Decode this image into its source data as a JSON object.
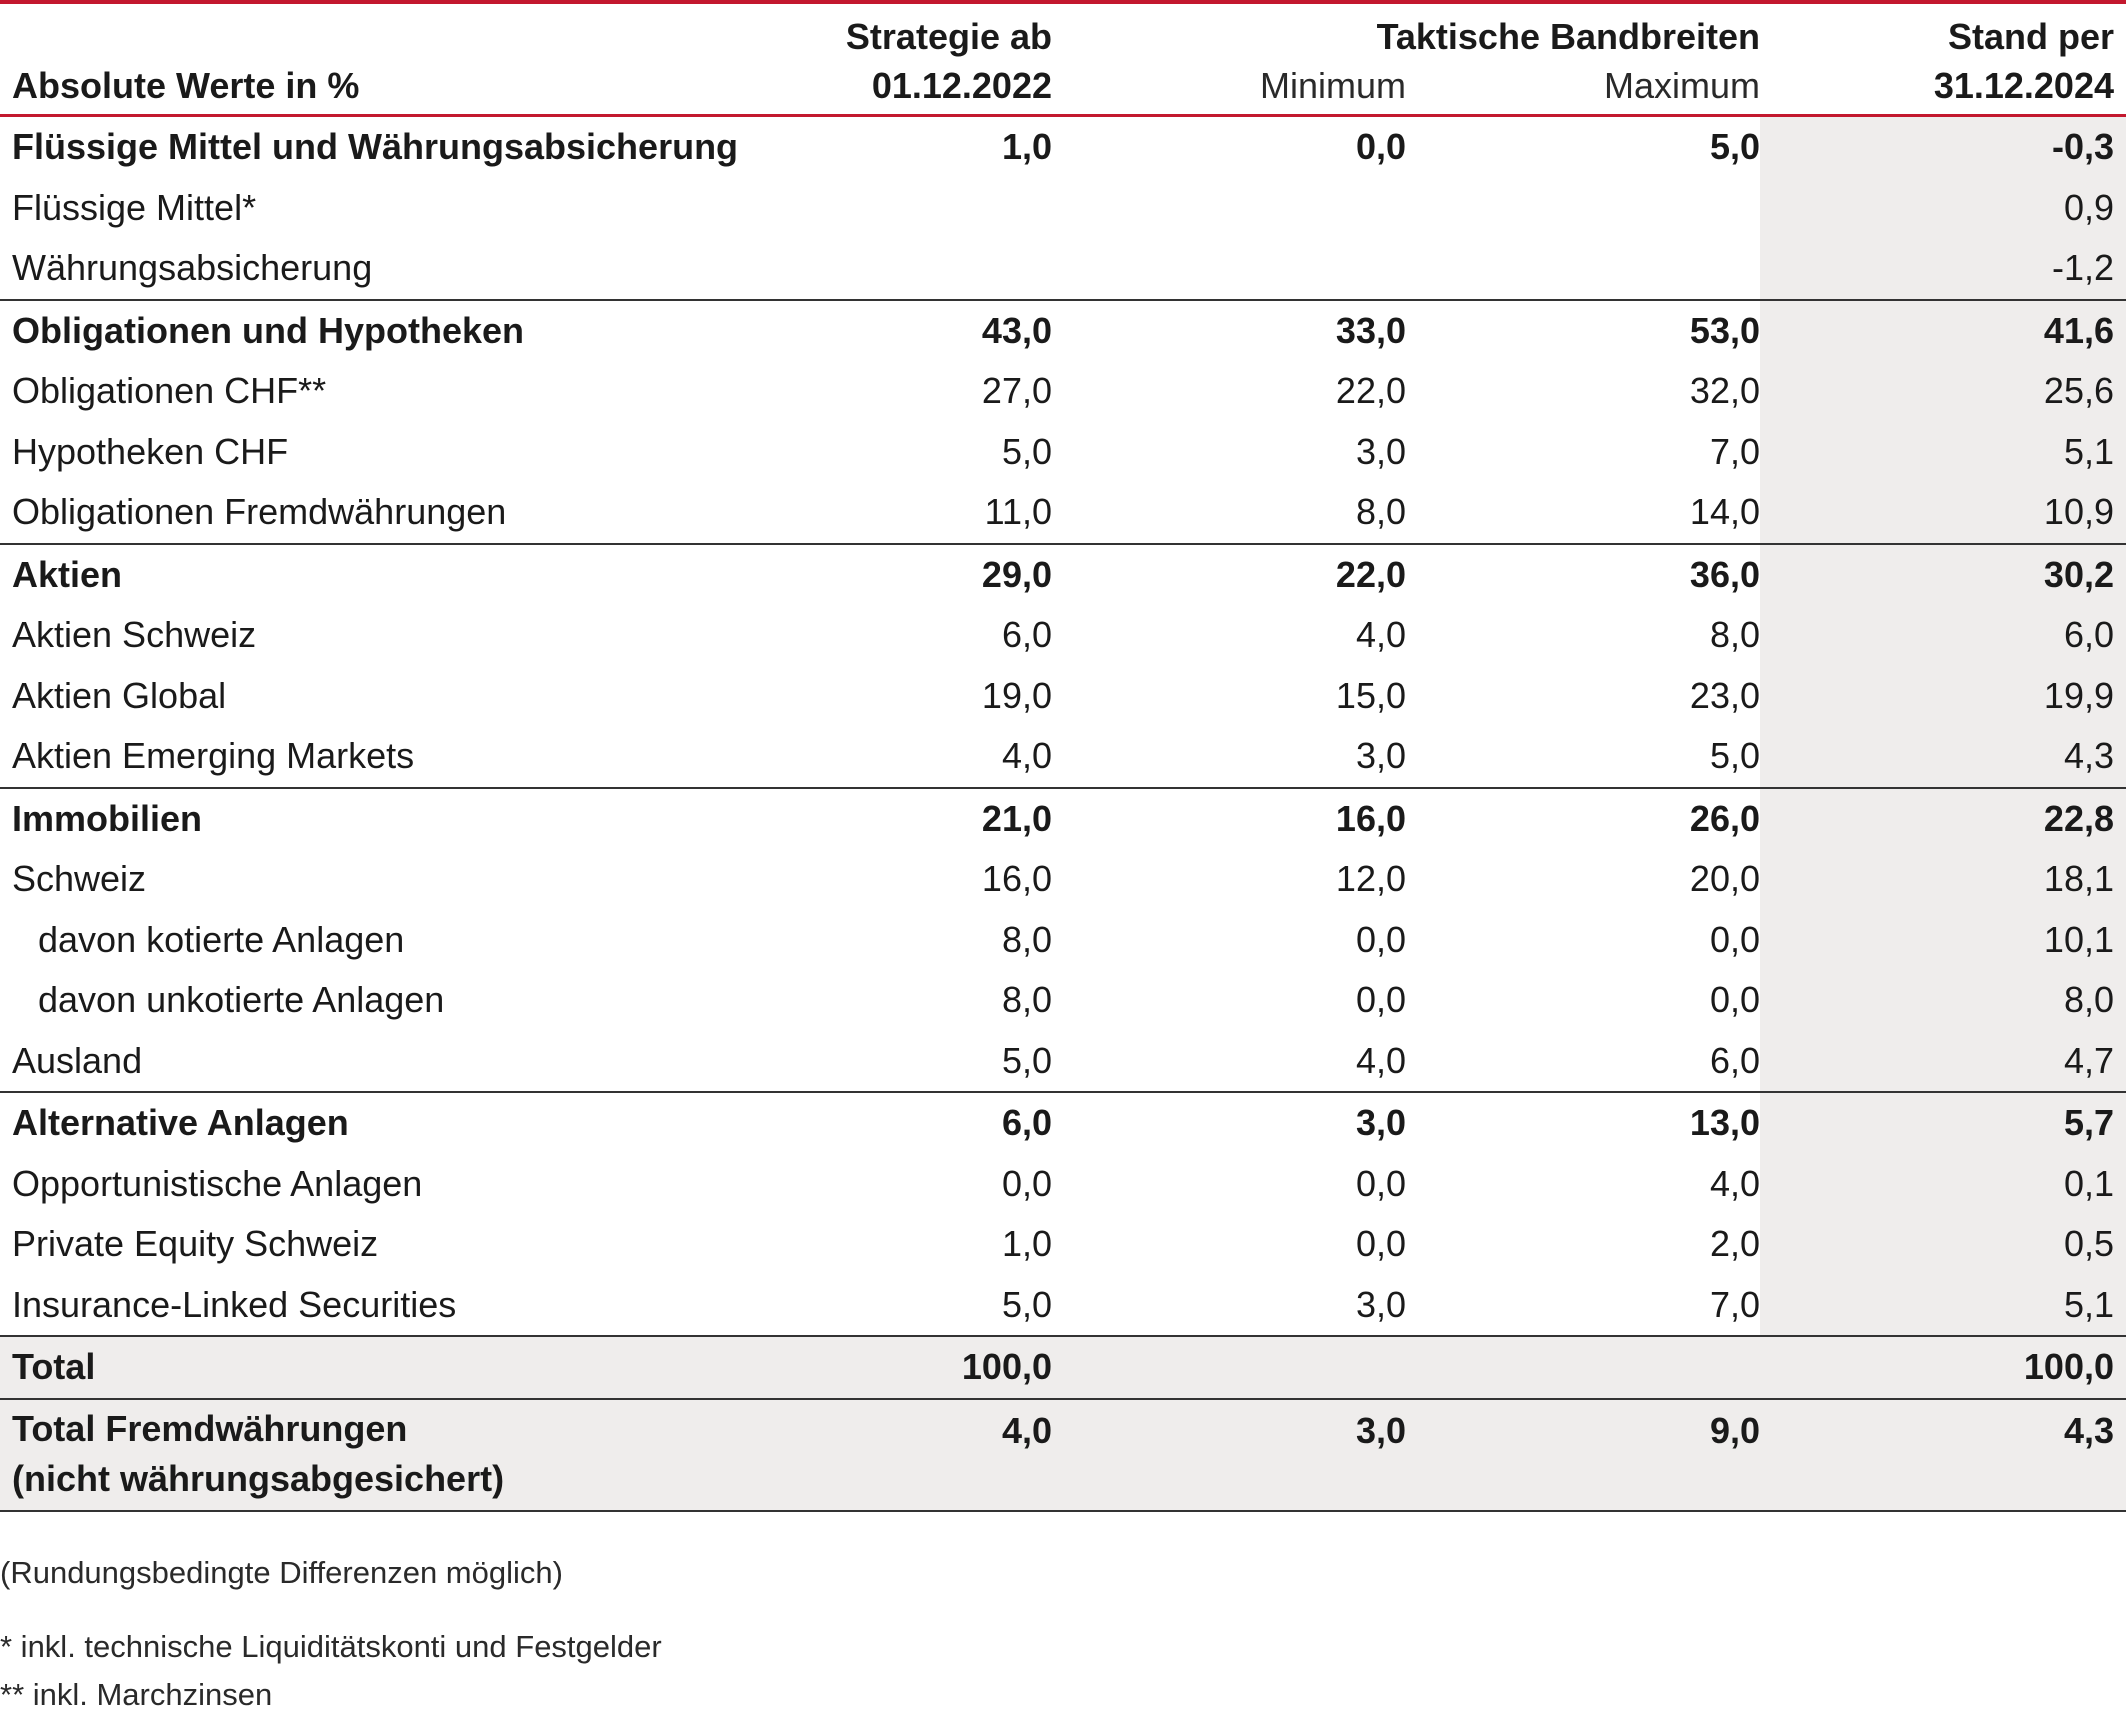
{
  "header": {
    "label_col": "Absolute Werte in %",
    "strategy_line1": "Strategie ab",
    "strategy_line2": "01.12.2022",
    "tactical_title": "Taktische Bandbreiten",
    "minimum": "Minimum",
    "maximum": "Maximum",
    "stand_line1": "Stand per",
    "stand_line2": "31.12.2024"
  },
  "rows": [
    {
      "label": "Flüssige Mittel und Währungsabsicherung",
      "strategy": "1,0",
      "min": "0,0",
      "max": "5,0",
      "stand": "-0,3"
    },
    {
      "label": "Flüssige Mittel*",
      "strategy": "",
      "min": "",
      "max": "",
      "stand": "0,9"
    },
    {
      "label": "Währungsabsicherung",
      "strategy": "",
      "min": "",
      "max": "",
      "stand": "-1,2"
    },
    {
      "label": "Obligationen und Hypotheken",
      "strategy": "43,0",
      "min": "33,0",
      "max": "53,0",
      "stand": "41,6"
    },
    {
      "label": "Obligationen CHF**",
      "strategy": "27,0",
      "min": "22,0",
      "max": "32,0",
      "stand": "25,6"
    },
    {
      "label": "Hypotheken CHF",
      "strategy": "5,0",
      "min": "3,0",
      "max": "7,0",
      "stand": "5,1"
    },
    {
      "label": "Obligationen Fremdwährungen",
      "strategy": "11,0",
      "min": "8,0",
      "max": "14,0",
      "stand": "10,9"
    },
    {
      "label": "Aktien",
      "strategy": "29,0",
      "min": "22,0",
      "max": "36,0",
      "stand": "30,2"
    },
    {
      "label": "Aktien Schweiz",
      "strategy": "6,0",
      "min": "4,0",
      "max": "8,0",
      "stand": "6,0"
    },
    {
      "label": "Aktien Global",
      "strategy": "19,0",
      "min": "15,0",
      "max": "23,0",
      "stand": "19,9"
    },
    {
      "label": "Aktien Emerging Markets",
      "strategy": "4,0",
      "min": "3,0",
      "max": "5,0",
      "stand": "4,3"
    },
    {
      "label": "Immobilien",
      "strategy": "21,0",
      "min": "16,0",
      "max": "26,0",
      "stand": "22,8"
    },
    {
      "label": "Schweiz",
      "strategy": "16,0",
      "min": "12,0",
      "max": "20,0",
      "stand": "18,1"
    },
    {
      "label": "davon kotierte Anlagen",
      "strategy": "8,0",
      "min": "0,0",
      "max": "0,0",
      "stand": "10,1"
    },
    {
      "label": "davon unkotierte Anlagen",
      "strategy": "8,0",
      "min": "0,0",
      "max": "0,0",
      "stand": "8,0"
    },
    {
      "label": "Ausland",
      "strategy": "5,0",
      "min": "4,0",
      "max": "6,0",
      "stand": "4,7"
    },
    {
      "label": "Alternative Anlagen",
      "strategy": "6,0",
      "min": "3,0",
      "max": "13,0",
      "stand": "5,7"
    },
    {
      "label": "Opportunistische Anlagen",
      "strategy": "0,0",
      "min": "0,0",
      "max": "4,0",
      "stand": "0,1"
    },
    {
      "label": "Private Equity Schweiz",
      "strategy": "1,0",
      "min": "0,0",
      "max": "2,0",
      "stand": "0,5"
    },
    {
      "label": "Insurance-Linked Securities",
      "strategy": "5,0",
      "min": "3,0",
      "max": "7,0",
      "stand": "5,1"
    }
  ],
  "total": {
    "label": "Total",
    "strategy": "100,0",
    "min": "",
    "max": "",
    "stand": "100,0"
  },
  "total_fx": {
    "label_line1": "Total Fremdwährungen",
    "label_line2": "(nicht währungsabgesichert)",
    "strategy": "4,0",
    "min": "3,0",
    "max": "9,0",
    "stand": "4,3"
  },
  "notes": {
    "rounding": "(Rundungsbedingte Differenzen möglich)",
    "footnote1": "* inkl. technische Liquiditätskonti und Festgelder",
    "footnote2": "** inkl. Marchzinsen"
  },
  "colors": {
    "accent": "#c3182e",
    "shade": "#efedec",
    "rule": "#333333"
  }
}
